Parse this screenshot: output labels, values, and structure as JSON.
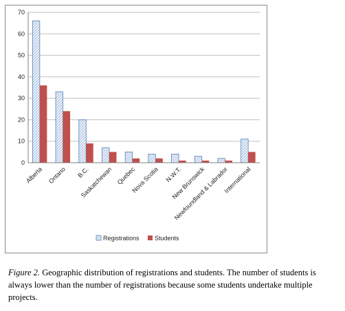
{
  "chart_data": {
    "type": "bar",
    "categories": [
      "Alberta",
      "Ontario",
      "B.C.",
      "Saskatchewan",
      "Quebec",
      "Nova Scotia",
      "N.W.T.",
      "New Brunswick",
      "Newfoundland & Labrador",
      "International"
    ],
    "series": [
      {
        "name": "Registrations",
        "values": [
          66,
          33,
          20,
          7,
          5,
          4,
          4,
          3,
          2,
          11
        ],
        "color": "#4f81bd",
        "pattern": "hatched"
      },
      {
        "name": "Students",
        "values": [
          36,
          24,
          9,
          5,
          2,
          2,
          1,
          1,
          1,
          5
        ],
        "color": "#c0504d"
      }
    ],
    "yticks": [
      0,
      10,
      20,
      30,
      40,
      50,
      60,
      70
    ],
    "ylim": [
      0,
      70
    ],
    "gridlines": true,
    "legend_position": "bottom"
  },
  "caption": {
    "label": "Figure 2.",
    "text": " Geographic distribution of registrations and students.  The number of students is always lower than the number of registrations because some students undertake multiple projects."
  }
}
